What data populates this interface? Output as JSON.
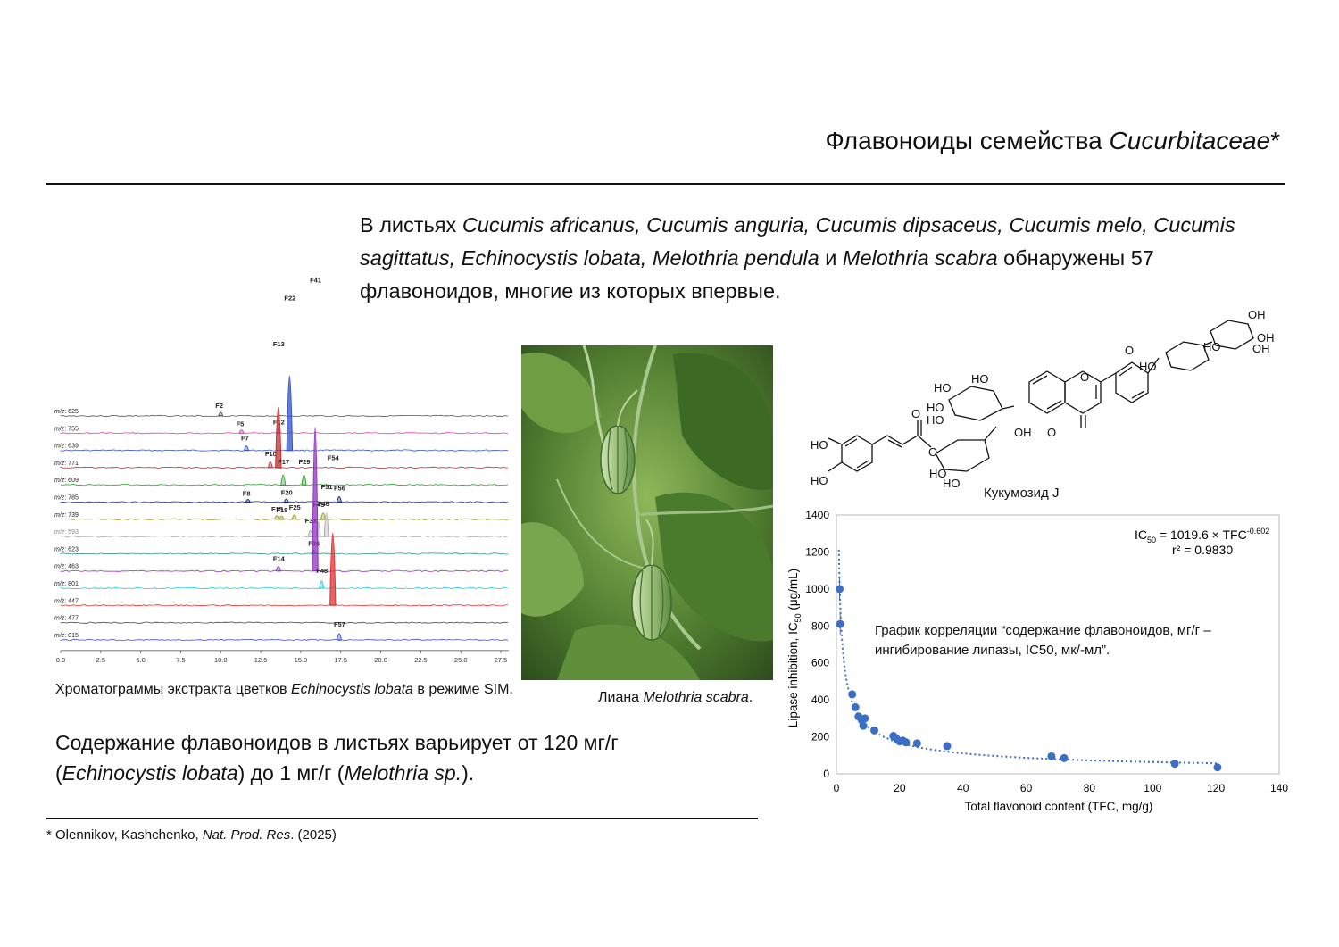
{
  "slide": {
    "title_plain": "Флавоноиды семейства ",
    "title_italic": "Cucurbitaceae",
    "title_mark": "*"
  },
  "intro": {
    "p1": "В листьях ",
    "s1": "Cucumis africanus, Cucumis anguria, Cucumis dipsaceus, Cucumis melo, Cucumis sagittatus, Echinocystis lobata, Melothria pendula",
    "p2": " и ",
    "s2": "Melothria scabra",
    "p3": " обнаружены 57 флавоноидов, многие из которых впервые."
  },
  "chromatogram": {
    "traces": [
      {
        "mz": "625",
        "color": "#555555",
        "peaks": [
          {
            "label": "F2",
            "t": 10.0,
            "h": 6
          }
        ]
      },
      {
        "mz": "755",
        "color": "#e040c0",
        "peaks": [
          {
            "label": "F5",
            "t": 11.3,
            "h": 5
          },
          {
            "label": "F12",
            "t": 13.6,
            "h": 7
          }
        ]
      },
      {
        "mz": "639",
        "color": "#3050c8",
        "peaks": [
          {
            "label": "F7",
            "t": 11.6,
            "h": 8
          },
          {
            "label": "F22",
            "t": 14.3,
            "h": 165
          }
        ]
      },
      {
        "mz": "771",
        "color": "#c03030",
        "peaks": [
          {
            "label": "F10",
            "t": 13.1,
            "h": 10
          },
          {
            "label": "F13",
            "t": 13.6,
            "h": 133
          }
        ]
      },
      {
        "mz": "609",
        "color": "#30a030",
        "peaks": [
          {
            "label": "F17",
            "t": 13.9,
            "h": 20
          },
          {
            "label": "F29",
            "t": 15.2,
            "h": 20
          }
        ]
      },
      {
        "mz": "785",
        "color": "#1a2a7a",
        "peaks": [
          {
            "label": "F8",
            "t": 11.7,
            "h": 4
          },
          {
            "label": "F20",
            "t": 14.1,
            "h": 5
          },
          {
            "label": "F56",
            "t": 17.4,
            "h": 10
          }
        ]
      },
      {
        "mz": "739",
        "color": "#9aa020",
        "peaks": [
          {
            "label": "F15",
            "t": 13.5,
            "h": 6
          },
          {
            "label": "F18",
            "t": 13.8,
            "h": 5
          },
          {
            "label": "F25",
            "t": 14.6,
            "h": 8
          },
          {
            "label": "F46",
            "t": 16.4,
            "h": 12
          }
        ]
      },
      {
        "mz": "593",
        "color": "#aaaaaa",
        "peaks": [
          {
            "label": "F33",
            "t": 15.6,
            "h": 12
          },
          {
            "label": "F45",
            "t": 16.1,
            "h": 30
          },
          {
            "label": "F51",
            "t": 16.6,
            "h": 50
          }
        ]
      },
      {
        "mz": "623",
        "color": "#309090",
        "peaks": [
          {
            "label": "F36",
            "t": 15.8,
            "h": 6
          }
        ]
      },
      {
        "mz": "463",
        "color": "#9030c0",
        "peaks": [
          {
            "label": "F14",
            "t": 13.6,
            "h": 8
          },
          {
            "label": "F41",
            "t": 15.9,
            "h": 320
          }
        ]
      },
      {
        "mz": "801",
        "color": "#20c8d8",
        "peaks": [
          {
            "label": "F48",
            "t": 16.3,
            "h": 14
          }
        ]
      },
      {
        "mz": "447",
        "color": "#e03030",
        "peaks": [
          {
            "label": "F54",
            "t": 17.0,
            "h": 160
          }
        ]
      },
      {
        "mz": "477",
        "color": "#444444",
        "peaks": []
      },
      {
        "mz": "815",
        "color": "#4050d0",
        "peaks": [
          {
            "label": "F57",
            "t": 17.4,
            "h": 12
          }
        ]
      }
    ],
    "x_ticks": [
      "0.0",
      "2.5",
      "5.0",
      "7.5",
      "10.0",
      "12.5",
      "15.0",
      "17.5",
      "20.0",
      "22.5",
      "25.0",
      "27.5"
    ],
    "x_range": [
      0,
      28
    ]
  },
  "captions": {
    "chrom_plain": "Хроматограммы экстракта цветков ",
    "chrom_italic": "Echinocystis lobata",
    "chrom_tail": " в режиме SIM.",
    "photo_plain": "Лиана ",
    "photo_italic": "Melothria scabra",
    "photo_tail": ".",
    "molecule": "Кукумозид J",
    "scatter_note": "График корреляции “содержание флавоноидов, мг/г – ингибирование липазы, IC50, мк/-мл”."
  },
  "content_note": {
    "p1": "Содержание флавоноидов в листьях варьирует от 120 мг/г (",
    "s1": "Echinocystis lobata",
    "p2": ") до 1 мг/г (",
    "s2": "Melothria sp.",
    "p3": ")."
  },
  "molecule_labels": [
    "OH",
    "OH",
    "OH",
    "HO",
    "HO",
    "O",
    "HO",
    "O",
    "HO",
    "HO",
    "HO",
    "OH",
    "O",
    "HO",
    "HO",
    "O",
    "HO",
    "O",
    "HO"
  ],
  "chart_data": {
    "type": "scatter",
    "xlabel": "Total flavonoid content (TFC, mg/g)",
    "ylabel_main": "Lipase inhibition, IC",
    "ylabel_sub": "50",
    "ylabel_unit": " (μg/mL)",
    "xlim": [
      0,
      140
    ],
    "ylim": [
      0,
      1400
    ],
    "x_ticks": [
      0,
      20,
      40,
      60,
      80,
      100,
      120,
      140
    ],
    "y_ticks": [
      0,
      200,
      400,
      600,
      800,
      1000,
      1200,
      1400
    ],
    "equation_a": "IC",
    "equation_sub": "50",
    "equation_b": " = 1019.6 × TFC",
    "equation_sup": "-0.602",
    "r2": "r² = 0.9830",
    "fit": {
      "a": 1019.6,
      "b": -0.602
    },
    "points": [
      {
        "x": 1.0,
        "y": 1000
      },
      {
        "x": 1.2,
        "y": 810
      },
      {
        "x": 5.0,
        "y": 430
      },
      {
        "x": 6.0,
        "y": 360
      },
      {
        "x": 7.0,
        "y": 310
      },
      {
        "x": 8.0,
        "y": 290
      },
      {
        "x": 8.5,
        "y": 260
      },
      {
        "x": 9.0,
        "y": 300
      },
      {
        "x": 12.0,
        "y": 235
      },
      {
        "x": 18.0,
        "y": 205
      },
      {
        "x": 19.0,
        "y": 190
      },
      {
        "x": 20.0,
        "y": 175
      },
      {
        "x": 21.0,
        "y": 180
      },
      {
        "x": 22.0,
        "y": 170
      },
      {
        "x": 25.5,
        "y": 165
      },
      {
        "x": 35.0,
        "y": 150
      },
      {
        "x": 68.0,
        "y": 95
      },
      {
        "x": 72.0,
        "y": 85
      },
      {
        "x": 107.0,
        "y": 55
      },
      {
        "x": 120.5,
        "y": 35
      }
    ],
    "grid": false,
    "legend": "none"
  },
  "footnote": {
    "p1": "* Olennikov, Kashchenko, ",
    "s1": "Nat. Prod. Res",
    "p2": ". (2025)"
  }
}
